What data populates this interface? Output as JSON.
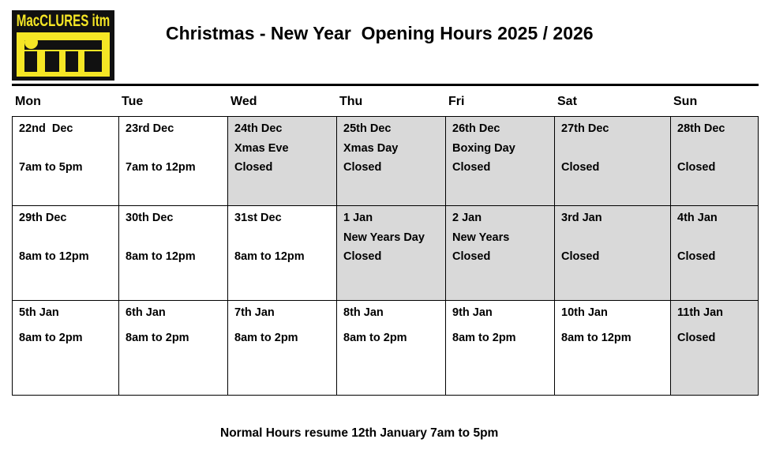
{
  "logo": {
    "text": "MacCLURES itm"
  },
  "title": "Christmas - New Year  Opening Hours 2025 / 2026",
  "days": [
    "Mon",
    "Tue",
    "Wed",
    "Thu",
    "Fri",
    "Sat",
    "Sun"
  ],
  "weeks": [
    [
      {
        "lines": [
          "22nd  Dec",
          "",
          "7am to 5pm"
        ],
        "closed": false
      },
      {
        "lines": [
          "23rd Dec",
          "",
          "7am to 12pm"
        ],
        "closed": false
      },
      {
        "lines": [
          "24th Dec",
          "Xmas Eve",
          "Closed"
        ],
        "closed": true
      },
      {
        "lines": [
          "25th Dec",
          "Xmas Day",
          "Closed"
        ],
        "closed": true
      },
      {
        "lines": [
          "26th Dec",
          "Boxing Day",
          "Closed"
        ],
        "closed": true
      },
      {
        "lines": [
          "27th Dec",
          "",
          "Closed"
        ],
        "closed": true
      },
      {
        "lines": [
          "28th Dec",
          "",
          "Closed"
        ],
        "closed": true
      }
    ],
    [
      {
        "lines": [
          "29th Dec",
          "",
          "8am to 12pm"
        ],
        "closed": false
      },
      {
        "lines": [
          "30th Dec",
          "",
          "8am to 12pm"
        ],
        "closed": false
      },
      {
        "lines": [
          "31st Dec",
          "",
          "8am to 12pm"
        ],
        "closed": false
      },
      {
        "lines": [
          "1 Jan",
          "New Years Day",
          "Closed"
        ],
        "closed": true
      },
      {
        "lines": [
          "2 Jan",
          "New Years",
          "Closed"
        ],
        "closed": true
      },
      {
        "lines": [
          "3rd Jan",
          "",
          "Closed"
        ],
        "closed": true
      },
      {
        "lines": [
          "4th Jan",
          "",
          "Closed"
        ],
        "closed": true
      }
    ],
    [
      {
        "lines": [
          "5th Jan",
          "8am to 2pm"
        ],
        "closed": false
      },
      {
        "lines": [
          "6th Jan",
          "8am to 2pm"
        ],
        "closed": false
      },
      {
        "lines": [
          "7th Jan",
          "8am to 2pm"
        ],
        "closed": false
      },
      {
        "lines": [
          "8th Jan",
          "8am to 2pm"
        ],
        "closed": false
      },
      {
        "lines": [
          "9th Jan",
          "8am to 2pm"
        ],
        "closed": false
      },
      {
        "lines": [
          "10th Jan",
          "8am to 12pm"
        ],
        "closed": false
      },
      {
        "lines": [
          "11th Jan",
          "Closed"
        ],
        "closed": true
      }
    ]
  ],
  "footer": "Normal Hours resume 12th January 7am to 5pm",
  "colors": {
    "closed_fill": "#d9d9d9",
    "logo_yellow": "#f5e625",
    "logo_black": "#111111"
  }
}
